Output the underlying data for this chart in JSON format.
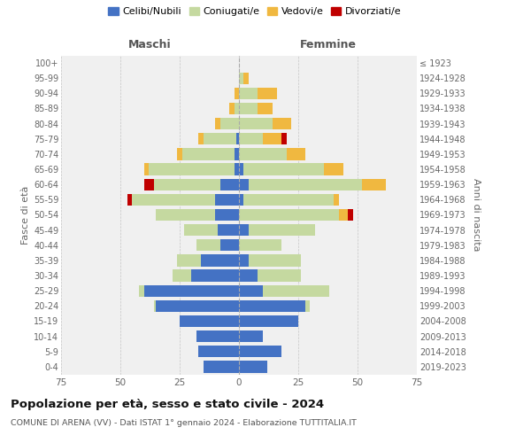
{
  "age_groups": [
    "0-4",
    "5-9",
    "10-14",
    "15-19",
    "20-24",
    "25-29",
    "30-34",
    "35-39",
    "40-44",
    "45-49",
    "50-54",
    "55-59",
    "60-64",
    "65-69",
    "70-74",
    "75-79",
    "80-84",
    "85-89",
    "90-94",
    "95-99",
    "100+"
  ],
  "birth_years": [
    "2019-2023",
    "2014-2018",
    "2009-2013",
    "2004-2008",
    "1999-2003",
    "1994-1998",
    "1989-1993",
    "1984-1988",
    "1979-1983",
    "1974-1978",
    "1969-1973",
    "1964-1968",
    "1959-1963",
    "1954-1958",
    "1949-1953",
    "1944-1948",
    "1939-1943",
    "1934-1938",
    "1929-1933",
    "1924-1928",
    "≤ 1923"
  ],
  "males": {
    "celibe": [
      15,
      17,
      18,
      25,
      35,
      40,
      20,
      16,
      8,
      9,
      10,
      10,
      8,
      2,
      2,
      1,
      0,
      0,
      0,
      0,
      0
    ],
    "coniugato": [
      0,
      0,
      0,
      0,
      1,
      2,
      8,
      10,
      10,
      14,
      25,
      35,
      28,
      36,
      22,
      14,
      8,
      2,
      0,
      0,
      0
    ],
    "vedovo": [
      0,
      0,
      0,
      0,
      0,
      0,
      0,
      0,
      0,
      0,
      0,
      0,
      0,
      2,
      2,
      2,
      2,
      2,
      2,
      0,
      0
    ],
    "divorziato": [
      0,
      0,
      0,
      0,
      0,
      0,
      0,
      0,
      0,
      0,
      0,
      2,
      4,
      0,
      0,
      0,
      0,
      0,
      0,
      0,
      0
    ]
  },
  "females": {
    "nubile": [
      12,
      18,
      10,
      25,
      28,
      10,
      8,
      4,
      0,
      4,
      0,
      2,
      4,
      2,
      0,
      0,
      0,
      0,
      0,
      0,
      0
    ],
    "coniugata": [
      0,
      0,
      0,
      0,
      2,
      28,
      18,
      22,
      18,
      28,
      42,
      38,
      48,
      34,
      20,
      10,
      14,
      8,
      8,
      2,
      0
    ],
    "vedova": [
      0,
      0,
      0,
      0,
      0,
      0,
      0,
      0,
      0,
      0,
      4,
      2,
      10,
      8,
      8,
      8,
      8,
      6,
      8,
      2,
      0
    ],
    "divorziata": [
      0,
      0,
      0,
      0,
      0,
      0,
      0,
      0,
      0,
      0,
      2,
      0,
      0,
      0,
      0,
      2,
      0,
      0,
      0,
      0,
      0
    ]
  },
  "colors": {
    "celibe_nubile": "#4472c4",
    "coniugato": "#c5d9a0",
    "vedovo": "#f0b840",
    "divorziato": "#c00000"
  },
  "xlim": 75,
  "title": "Popolazione per età, sesso e stato civile - 2024",
  "subtitle": "COMUNE DI ARENA (VV) - Dati ISTAT 1° gennaio 2024 - Elaborazione TUTTITALIA.IT",
  "ylabel_left": "Fasce di età",
  "ylabel_right": "Anni di nascita",
  "xlabel_left": "Maschi",
  "xlabel_right": "Femmine",
  "legend_labels": [
    "Celibi/Nubili",
    "Coniugati/e",
    "Vedovi/e",
    "Divorziati/e"
  ],
  "bg_color": "#f0f0f0"
}
